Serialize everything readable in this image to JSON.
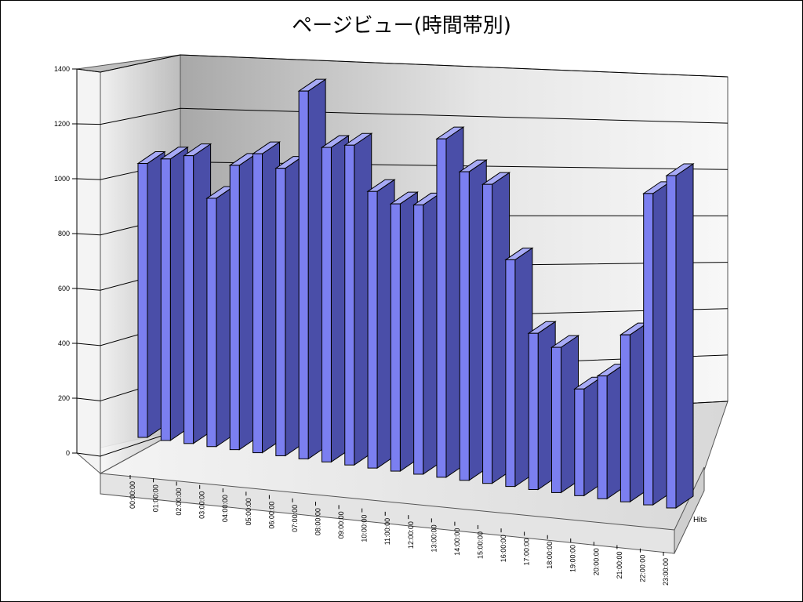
{
  "chart_data": {
    "type": "bar",
    "title": "ページビュー(時間帯別)",
    "categories": [
      "00:00:00",
      "01:00:00",
      "02:00:00",
      "03:00:00",
      "04:00:00",
      "05:00:00",
      "06:00:00",
      "07:00:00",
      "08:00:00",
      "09:00:00",
      "10:00:00",
      "11:00:00",
      "12:00:00",
      "13:00:00",
      "14:00:00",
      "15:00:00",
      "16:00:00",
      "17:00:00",
      "18:00:00",
      "19:00:00",
      "20:00:00",
      "21:00:00",
      "22:00:00",
      "23:00:00"
    ],
    "series": [
      {
        "name": "Hits",
        "values": [
          1040,
          1060,
          1075,
          920,
          1045,
          1090,
          1040,
          1320,
          1120,
          1130,
          970,
          930,
          930,
          1160,
          1050,
          1010,
          760,
          520,
          480,
          350,
          400,
          540,
          1000,
          1060
        ]
      }
    ],
    "yticks": [
      "0",
      "200",
      "400",
      "600",
      "800",
      "1000",
      "1200",
      "1400"
    ],
    "ylim": [
      0,
      1400
    ],
    "grid": true,
    "legend": "none",
    "colors": {
      "bar_front": "#7b7ff0",
      "bar_side": "#4a4ea8",
      "bar_top": "#a7aaf6"
    }
  }
}
